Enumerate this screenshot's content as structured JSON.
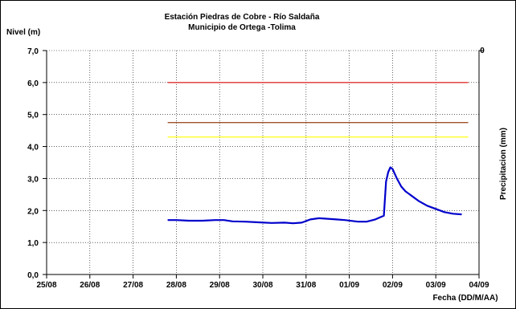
{
  "chart_data": {
    "type": "line",
    "title": "Estación Piedras de Cobre  - Río Saldaña",
    "subtitle": "Municipio de Ortega -Tolima",
    "ylabel": "Nivel (m)",
    "y2label": "Precipitacion (mm)",
    "y2_tick": "0",
    "xlabel": "Fecha (DD/M/AA)",
    "ylim": [
      0,
      7
    ],
    "yticks": [
      "0,0",
      "1,0",
      "2,0",
      "3,0",
      "4,0",
      "5,0",
      "6,0",
      "7,0"
    ],
    "xlim": [
      0,
      10
    ],
    "xticks": [
      "25/08",
      "26/08",
      "27/08",
      "28/08",
      "29/08",
      "30/08",
      "31/08",
      "01/09",
      "02/09",
      "03/09",
      "04/09"
    ],
    "grid": true,
    "thresholds": [
      {
        "value": 6.0,
        "color": "#e03030",
        "x_start": 2.8,
        "x_end": 9.75
      },
      {
        "value": 4.75,
        "color": "#a0522d",
        "x_start": 2.8,
        "x_end": 9.75
      },
      {
        "value": 4.3,
        "color": "#ffff33",
        "x_start": 2.8,
        "x_end": 9.75
      }
    ],
    "series": [
      {
        "color": "#0000cc",
        "x": [
          2.8,
          3.0,
          3.3,
          3.6,
          3.9,
          4.1,
          4.3,
          4.6,
          4.9,
          5.2,
          5.5,
          5.7,
          5.9,
          6.1,
          6.3,
          6.5,
          6.7,
          6.9,
          7.2,
          7.4,
          7.6,
          7.8,
          7.85,
          7.9,
          7.95,
          8.0,
          8.05,
          8.1,
          8.2,
          8.3,
          8.45,
          8.6,
          8.8,
          9.0,
          9.2,
          9.4,
          9.6
        ],
        "y": [
          1.7,
          1.7,
          1.68,
          1.68,
          1.7,
          1.7,
          1.66,
          1.65,
          1.63,
          1.61,
          1.62,
          1.6,
          1.62,
          1.72,
          1.76,
          1.74,
          1.72,
          1.7,
          1.65,
          1.65,
          1.72,
          1.84,
          2.9,
          3.2,
          3.35,
          3.3,
          3.15,
          3.0,
          2.75,
          2.6,
          2.45,
          2.3,
          2.15,
          2.05,
          1.95,
          1.9,
          1.88
        ]
      }
    ]
  }
}
